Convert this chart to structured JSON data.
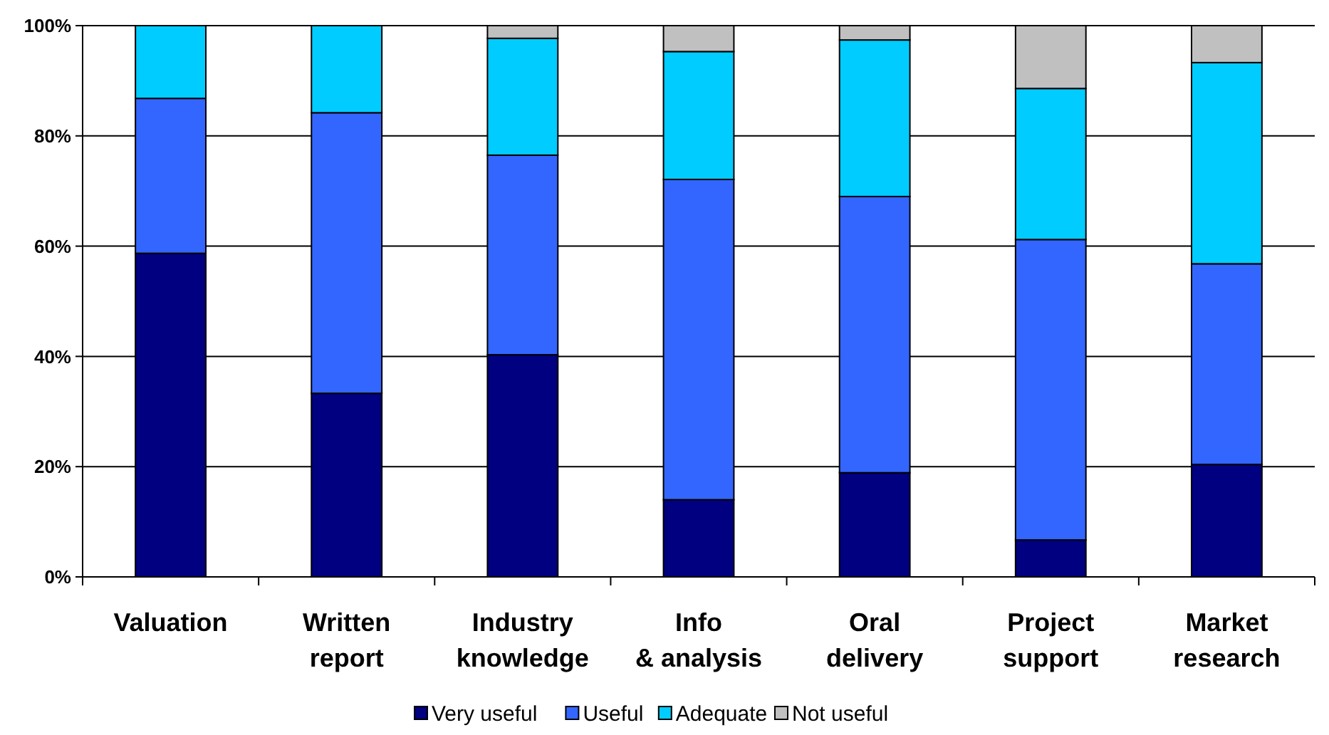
{
  "chart_data": {
    "type": "bar",
    "stacked": true,
    "categories": [
      "Valuation",
      "Written report",
      "Industry knowledge",
      "Info & analysis",
      "Oral delivery",
      "Project support",
      "Market research"
    ],
    "series": [
      {
        "name": "Very useful",
        "color": "#000080",
        "values": [
          58.7,
          33.3,
          40.3,
          14.0,
          18.9,
          6.7,
          20.4
        ]
      },
      {
        "name": "Useful",
        "color": "#3366ff",
        "values": [
          28.1,
          50.9,
          36.2,
          58.1,
          50.1,
          54.5,
          36.4
        ]
      },
      {
        "name": "Adequate",
        "color": "#00ccff",
        "values": [
          13.2,
          15.8,
          21.2,
          23.2,
          28.4,
          27.4,
          36.5
        ]
      },
      {
        "name": "Not useful",
        "color": "#c0c0c0",
        "values": [
          0,
          0,
          2.3,
          4.7,
          2.6,
          11.4,
          6.7
        ]
      }
    ],
    "ylim": [
      0,
      100
    ],
    "yticks": [
      {
        "value": 0,
        "label": "0%"
      },
      {
        "value": 20,
        "label": "20%"
      },
      {
        "value": 40,
        "label": "40%"
      },
      {
        "value": 60,
        "label": "60%"
      },
      {
        "value": 80,
        "label": "80%"
      },
      {
        "value": 100,
        "label": "100%"
      }
    ],
    "grid": "y",
    "legend": "bottom"
  }
}
